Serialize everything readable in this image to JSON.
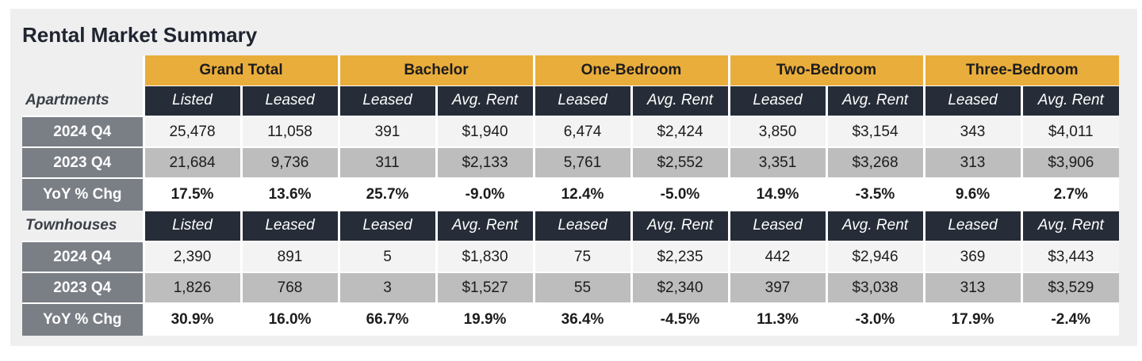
{
  "title": "Rental Market Summary",
  "groups": [
    "Grand Total",
    "Bachelor",
    "One-Bedroom",
    "Two-Bedroom",
    "Three-Bedroom"
  ],
  "apartments": {
    "section_label": "Apartments",
    "subheaders": [
      "Listed",
      "Leased",
      "Leased",
      "Avg. Rent",
      "Leased",
      "Avg. Rent",
      "Leased",
      "Avg. Rent",
      "Leased",
      "Avg. Rent"
    ],
    "rows": [
      {
        "label": "2024 Q4",
        "values": [
          "25,478",
          "11,058",
          "391",
          "$1,940",
          "6,474",
          "$2,424",
          "3,850",
          "$3,154",
          "343",
          "$4,011"
        ]
      },
      {
        "label": "2023 Q4",
        "values": [
          "21,684",
          "9,736",
          "311",
          "$2,133",
          "5,761",
          "$2,552",
          "3,351",
          "$3,268",
          "313",
          "$3,906"
        ]
      },
      {
        "label": "YoY % Chg",
        "values": [
          "17.5%",
          "13.6%",
          "25.7%",
          "-9.0%",
          "12.4%",
          "-5.0%",
          "14.9%",
          "-3.5%",
          "9.6%",
          "2.7%"
        ]
      }
    ]
  },
  "townhouses": {
    "section_label": "Townhouses",
    "subheaders": [
      "Listed",
      "Leased",
      "Leased",
      "Avg. Rent",
      "Leased",
      "Avg. Rent",
      "Leased",
      "Avg. Rent",
      "Leased",
      "Avg. Rent"
    ],
    "rows": [
      {
        "label": "2024 Q4",
        "values": [
          "2,390",
          "891",
          "5",
          "$1,830",
          "75",
          "$2,235",
          "442",
          "$2,946",
          "369",
          "$3,443"
        ]
      },
      {
        "label": "2023 Q4",
        "values": [
          "1,826",
          "768",
          "3",
          "$1,527",
          "55",
          "$2,340",
          "397",
          "$3,038",
          "313",
          "$3,529"
        ]
      },
      {
        "label": "YoY % Chg",
        "values": [
          "30.9%",
          "16.0%",
          "66.7%",
          "19.9%",
          "36.4%",
          "-4.5%",
          "11.3%",
          "-3.0%",
          "17.9%",
          "-2.4%"
        ]
      }
    ]
  },
  "colors": {
    "group_header": "#e9ad3b",
    "subheader": "#262d38",
    "row_label": "#7a7e85",
    "row_alt": "#bdbdbd",
    "background": "#efefef"
  }
}
